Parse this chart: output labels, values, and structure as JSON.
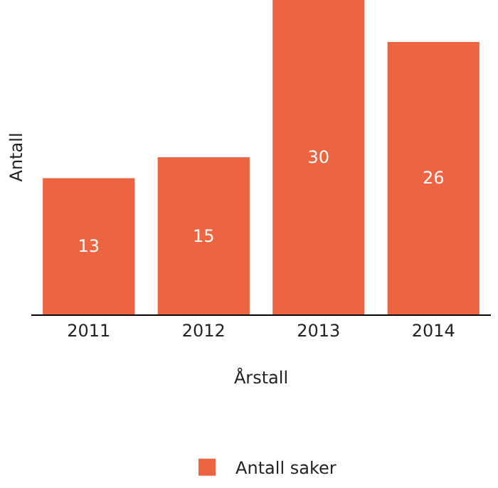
{
  "chart_data": {
    "type": "bar",
    "xlabel": "Årstall",
    "ylabel": "Antall",
    "categories": [
      "2011",
      "2012",
      "2013",
      "2014"
    ],
    "series": [
      {
        "name": "Antall saker",
        "color": "#ef6440",
        "values": [
          13,
          15,
          30,
          26
        ]
      }
    ],
    "data_labels": true,
    "legend": "bottom",
    "grid": false
  }
}
